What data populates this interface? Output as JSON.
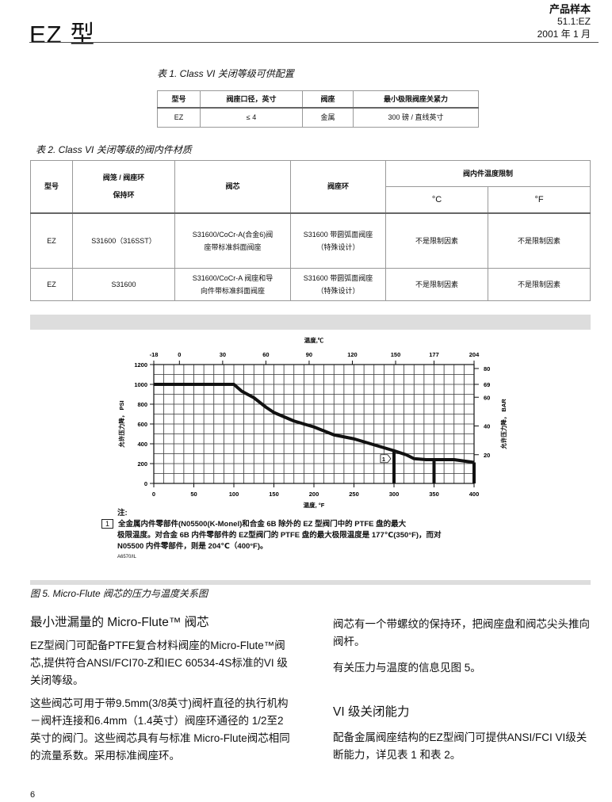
{
  "header": {
    "title": "EZ 型",
    "doc_type": "产品样本",
    "doc_no": "51.1:EZ",
    "date": "2001 年 1 月"
  },
  "table1": {
    "caption": "表 1. Class VI 关闭等级可供配置",
    "headers": [
      "型号",
      "阀座口径，英寸",
      "阀座",
      "最小极限阀座关紧力"
    ],
    "rows": [
      [
        "EZ",
        "≤ 4",
        "金属",
        "300 磅 / 直线英寸"
      ]
    ]
  },
  "table2": {
    "caption": "表 2. Class VI 关闭等级的阀内件材质",
    "headers": [
      "型号",
      "阀笼 / 阀座环\n保持环",
      "阀芯",
      "阀座环",
      "阀内件温度限制",
      "°C",
      "°F"
    ],
    "rows": [
      [
        "EZ",
        "S31600（316SST）",
        "S31600/CoCr-A(合金6)阀座带标准斜面阀座",
        "S31600 带圆弧面阀座（特殊设计）",
        "不是限制因素",
        "不是限制因素"
      ],
      [
        "EZ",
        "S31600",
        "S31600/CoCr-A 阀座和导向件带标准斜面阀座",
        "S31600 带圆弧面阀座（特殊设计）",
        "不是限制因素",
        "不是限制因素"
      ]
    ]
  },
  "chart_data": {
    "type": "line",
    "title": "",
    "xlabel": "温度, °F",
    "x2label": "温度,℃",
    "ylabel": "允许压力降， PSI",
    "y2label": "允许压力降， BAR",
    "xlim": [
      0,
      400
    ],
    "ylim": [
      0,
      1200
    ],
    "xticks": [
      0,
      50,
      100,
      150,
      200,
      250,
      300,
      350,
      400
    ],
    "yticks": [
      0,
      200,
      400,
      600,
      800,
      1000,
      1200
    ],
    "x2ticks": [
      {
        "label": "-18",
        "f": 0
      },
      {
        "label": "0",
        "f": 32
      },
      {
        "label": "30",
        "f": 86
      },
      {
        "label": "60",
        "f": 140
      },
      {
        "label": "90",
        "f": 194
      },
      {
        "label": "120",
        "f": 248
      },
      {
        "label": "150",
        "f": 302
      },
      {
        "label": "177",
        "f": 350
      },
      {
        "label": "204",
        "f": 400
      }
    ],
    "y2ticks": [
      {
        "label": "80",
        "psi": 1160
      },
      {
        "label": "69",
        "psi": 1000
      },
      {
        "label": "60",
        "psi": 870
      },
      {
        "label": "40",
        "psi": 580
      },
      {
        "label": "20",
        "psi": 290
      }
    ],
    "grid": true,
    "series": [
      {
        "x": [
          0,
          100,
          110,
          125,
          140,
          150,
          175,
          200,
          225,
          250,
          275,
          300,
          315,
          325,
          340,
          375,
          400
        ],
        "y": [
          1000,
          1000,
          930,
          865,
          770,
          716,
          630,
          570,
          490,
          450,
          390,
          330,
          290,
          250,
          240,
          240,
          212
        ]
      }
    ],
    "limit_lines_f": [
      300,
      350,
      400
    ],
    "annotation": {
      "label": "1",
      "x": 295,
      "y": 250
    }
  },
  "notes": {
    "label": "注:",
    "marker": "1",
    "lines": [
      "全金属内件零部件(N05500(K-Monel)和合金 6B 除外的 EZ 型阀门中的 PTFE 盘的最大",
      "极限温度。对合金 6B 内件零部件的 EZ型阀门的 PTFE 盘的最大极限温度是 177℃(350°F)，而对",
      "N05500 内件零部件，则是 204℃（400°F)。"
    ],
    "code": "A6570/IL"
  },
  "figure_caption": "图 5. Micro-Flute 阀芯的压力与温度关系图",
  "left": {
    "heading": "最小泄漏量的 Micro-Flute™ 阀芯",
    "p1": "EZ型阀门可配备PTFE复合材料阀座的Micro-Flute™阀芯,提供符合ANSI/FCI70-Z和IEC 60534-4S标准的VI 级关闭等级。",
    "p2": "这些阀芯可用于带9.5mm(3/8英寸)阀杆直径的执行机构－阀杆连接和6.4mm（1.4英寸）阀座环通径的 1/2至2英寸的阀门。这些阀芯具有与标准 Micro-Flute阀芯相同的流量系数。采用标准阀座环。"
  },
  "right": {
    "p1": "阀芯有一个带螺纹的保持环，把阀座盘和阀芯尖头推向阀杆。",
    "p2": "有关压力与温度的信息见图 5。",
    "heading": "VI 级关闭能力",
    "p3": "配备金属阀座结构的EZ型阀门可提供ANSI/FCI VI级关断能力，详见表 1 和表 2。"
  },
  "page_number": "6"
}
